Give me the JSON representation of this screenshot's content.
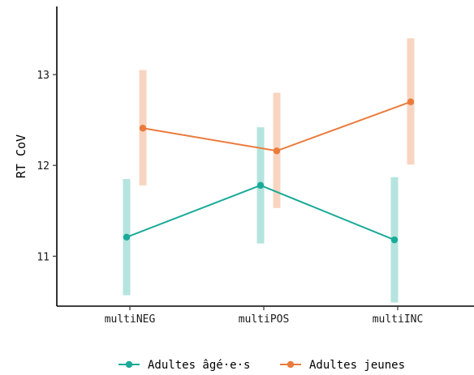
{
  "chart_data": {
    "type": "line",
    "title": "",
    "xlabel": "",
    "ylabel": "RT CoV",
    "categories": [
      "multiNEG",
      "multiPOS",
      "multiINC"
    ],
    "ylim": [
      10.45,
      13.75
    ],
    "yticks": [
      11,
      12,
      13
    ],
    "grid": false,
    "legend_position": "bottom",
    "series": [
      {
        "name": "Adultes âgé·e·s",
        "color": "#1aaa98",
        "values": [
          11.21,
          11.78,
          11.18
        ],
        "ci_low": [
          10.57,
          11.14,
          10.49
        ],
        "ci_high": [
          11.85,
          12.42,
          11.87
        ]
      },
      {
        "name": "Adultes jeunes",
        "color": "#ea7b3c",
        "values": [
          12.41,
          12.16,
          12.7
        ],
        "ci_low": [
          11.78,
          11.53,
          12.01
        ],
        "ci_high": [
          13.05,
          12.8,
          13.4
        ]
      }
    ]
  }
}
